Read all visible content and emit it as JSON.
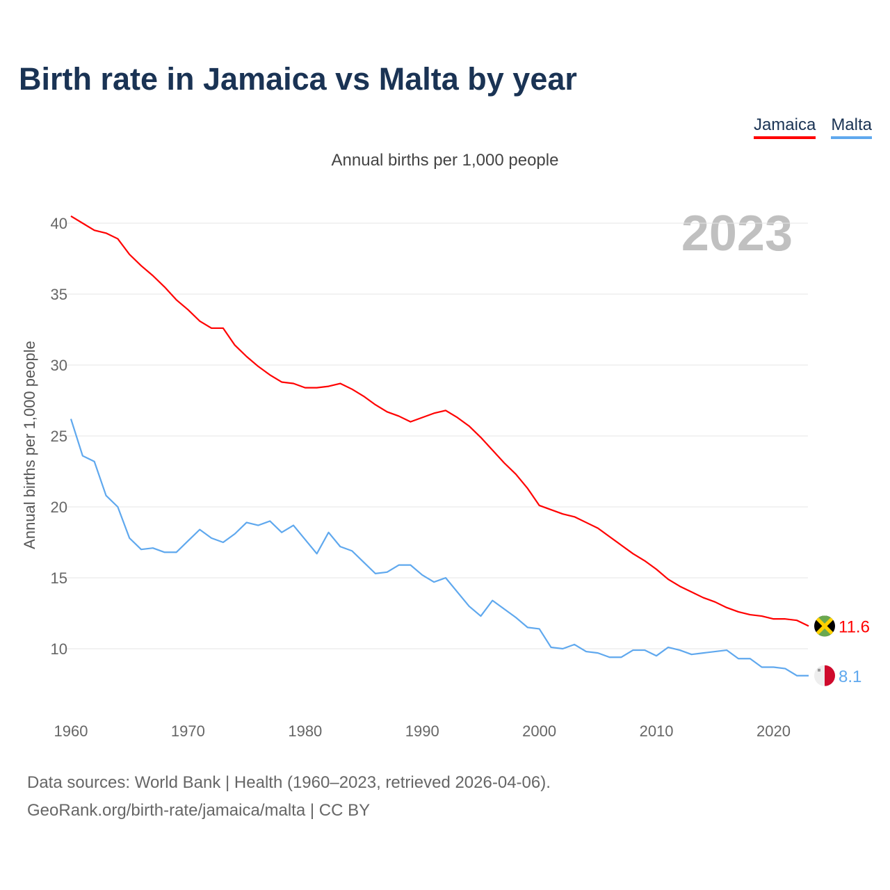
{
  "title": "Birth rate in Jamaica vs Malta by year",
  "legend": [
    {
      "label": "Jamaica",
      "color": "#ff0000"
    },
    {
      "label": "Malta",
      "color": "#5fa8ee"
    }
  ],
  "subtitle": "Annual births per 1,000 people",
  "source_line1": "Data sources: World Bank | Health (1960–2023, retrieved 2026-04-06).",
  "source_line2": "GeoRank.org/birth-rate/jamaica/malta | CC BY",
  "chart_data": {
    "type": "line",
    "title": "Birth rate in Jamaica vs Malta by year",
    "ylabel": "Annual births per 1,000 people",
    "xlabel": "",
    "year_label": "2023",
    "xlim": [
      1960,
      2023
    ],
    "ylim": [
      10,
      40
    ],
    "yticks": [
      10,
      15,
      20,
      25,
      30,
      35,
      40
    ],
    "xticks": [
      1960,
      1970,
      1980,
      1990,
      2000,
      2010,
      2020
    ],
    "grid": true,
    "legend_position": "top-right",
    "x_start": 1960,
    "series": [
      {
        "name": "Jamaica",
        "color": "#ff0000",
        "end_label": "11.6",
        "flag": "jamaica-flag",
        "values": [
          40.5,
          40.0,
          39.5,
          39.3,
          38.9,
          37.8,
          37.0,
          36.3,
          35.5,
          34.6,
          33.9,
          33.1,
          32.6,
          32.6,
          31.4,
          30.6,
          29.9,
          29.3,
          28.8,
          28.7,
          28.4,
          28.4,
          28.5,
          28.7,
          28.3,
          27.8,
          27.2,
          26.7,
          26.4,
          26.0,
          26.3,
          26.6,
          26.8,
          26.3,
          25.7,
          24.9,
          24.0,
          23.1,
          22.3,
          21.3,
          20.1,
          19.8,
          19.5,
          19.3,
          18.9,
          18.5,
          17.9,
          17.3,
          16.7,
          16.2,
          15.6,
          14.9,
          14.4,
          14.0,
          13.6,
          13.3,
          12.9,
          12.6,
          12.4,
          12.3,
          12.1,
          12.1,
          12.0,
          11.6
        ]
      },
      {
        "name": "Malta",
        "color": "#5fa8ee",
        "end_label": "8.1",
        "flag": "malta-flag",
        "values": [
          26.2,
          23.6,
          23.2,
          20.8,
          20.0,
          17.8,
          17.0,
          17.1,
          16.8,
          16.8,
          17.6,
          18.4,
          17.8,
          17.5,
          18.1,
          18.9,
          18.7,
          19.0,
          18.2,
          18.7,
          17.7,
          16.7,
          18.2,
          17.2,
          16.9,
          16.1,
          15.3,
          15.4,
          15.9,
          15.9,
          15.2,
          14.7,
          15.0,
          14.0,
          13.0,
          12.3,
          13.4,
          12.8,
          12.2,
          11.5,
          11.4,
          10.1,
          10.0,
          10.3,
          9.8,
          9.7,
          9.4,
          9.4,
          9.9,
          9.9,
          9.5,
          10.1,
          9.9,
          9.6,
          9.7,
          9.8,
          9.9,
          9.3,
          9.3,
          8.7,
          8.7,
          8.6,
          8.1,
          8.1
        ]
      }
    ]
  }
}
